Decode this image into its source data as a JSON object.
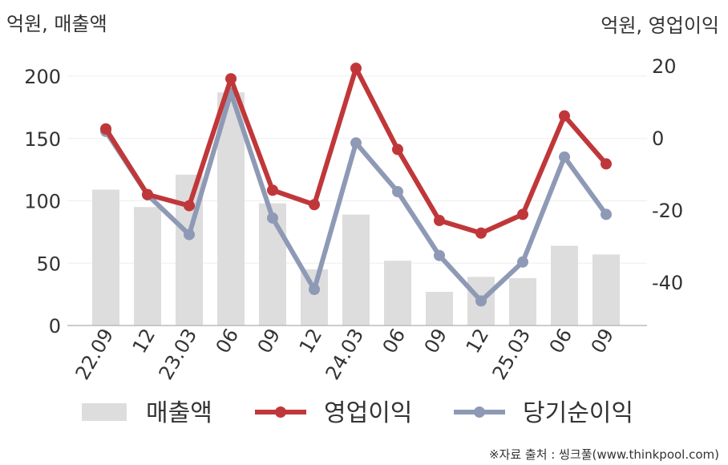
{
  "chart_data": {
    "type": "bar+line",
    "left_axis_unit": "억원, 매출액",
    "right_axis_unit": "억원, 영업이익",
    "categories": [
      "22.09",
      "12",
      "23.03",
      "06",
      "09",
      "12",
      "24.03",
      "06",
      "09",
      "12",
      "25.03",
      "06",
      "09"
    ],
    "left_axis": {
      "min": 0,
      "max": 200,
      "ticks": [
        0,
        50,
        100,
        150,
        200
      ]
    },
    "right_axis": {
      "min": -53,
      "max": 17,
      "ticks": [
        -40,
        -20,
        0,
        20
      ]
    },
    "series": [
      {
        "name": "매출액",
        "type": "bar",
        "axis": "left",
        "color": "#dddddd",
        "values": [
          109,
          95,
          121,
          187,
          98,
          45,
          89,
          52,
          27,
          39,
          38,
          64,
          57
        ]
      },
      {
        "name": "영업이익",
        "type": "line",
        "axis": "right",
        "color": "#c0373a",
        "values": [
          2.5,
          -15.7,
          -18.8,
          16.4,
          -14.5,
          -18.5,
          19.3,
          -3.2,
          -22.9,
          -26.4,
          -21.2,
          6.1,
          -7.2
        ]
      },
      {
        "name": "당기순이익",
        "type": "line",
        "axis": "right",
        "color": "#8e9ab5",
        "values": [
          1.8,
          -15.8,
          -26.8,
          12.5,
          -22.2,
          -42.0,
          -1.4,
          -14.9,
          -32.6,
          -45.2,
          -34.4,
          -5.3,
          -21.2
        ]
      }
    ],
    "grid": true,
    "legend_position": "bottom"
  },
  "source": "※자료 출처 : 씽크풀(www.thinkpool.com)"
}
